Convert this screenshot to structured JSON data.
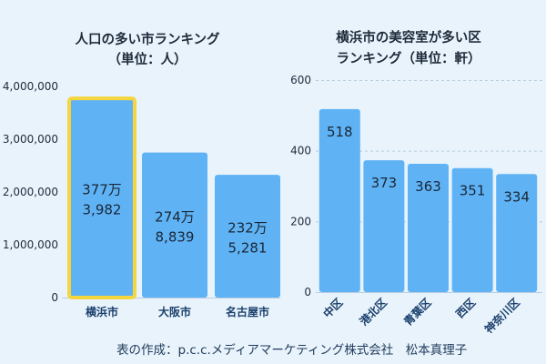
{
  "colors": {
    "background": "#e8f3fc",
    "bar": "#5fb3f5",
    "highlight_border": "#f5d63d",
    "grid": "#b8cde0",
    "axis_text": "#1f2b3a",
    "xtick_text": "#1a3f6b"
  },
  "credit": "表の作成：p.c.c.メディアマーケティング株式会社　松本真理子",
  "chart_data": [
    {
      "type": "bar",
      "title": [
        "人口の多い市ランキング",
        "（単位：人）"
      ],
      "categories": [
        "横浜市",
        "大阪市",
        "名古屋市"
      ],
      "values": [
        3773982,
        2748839,
        2325281
      ],
      "data_labels": [
        [
          "377万",
          "3,982"
        ],
        [
          "274万",
          "8,839"
        ],
        [
          "232万",
          "5,281"
        ]
      ],
      "highlight_index": 0,
      "ylim": [
        0,
        4000000
      ],
      "yticks": [
        0,
        1000000,
        2000000,
        3000000,
        4000000
      ],
      "ytick_labels": [
        "0",
        "1,000,000",
        "2,000,000",
        "3,000,000",
        "4,000,000"
      ],
      "grid": false
    },
    {
      "type": "bar",
      "title": [
        "横浜市の美容室が多い区",
        "ランキング（単位：軒）"
      ],
      "categories": [
        "中区",
        "港北区",
        "青葉区",
        "西区",
        "神奈川区"
      ],
      "values": [
        518,
        373,
        363,
        351,
        334
      ],
      "data_labels": [
        "518",
        "373",
        "363",
        "351",
        "334"
      ],
      "ylim": [
        0,
        600
      ],
      "yticks": [
        0,
        200,
        400,
        600
      ],
      "ytick_labels": [
        "0",
        "200",
        "400",
        "600"
      ],
      "grid": true
    }
  ]
}
